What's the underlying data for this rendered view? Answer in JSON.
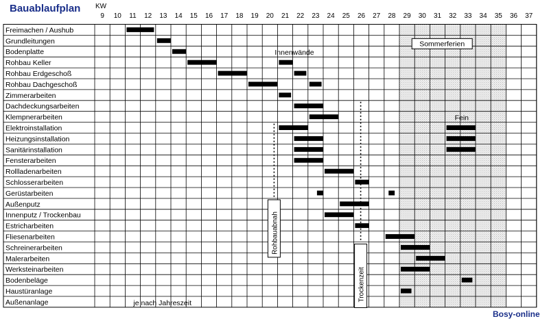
{
  "chart_data": {
    "type": "gantt",
    "title": "Bauablaufplan",
    "week_label": "KW",
    "weeks": [
      9,
      10,
      11,
      12,
      13,
      14,
      15,
      16,
      17,
      18,
      19,
      20,
      21,
      22,
      23,
      24,
      25,
      26,
      27,
      28,
      29,
      30,
      31,
      32,
      33,
      34,
      35,
      36,
      37
    ],
    "tasks": [
      {
        "name": "Freimachen / Aushub",
        "bars": [
          [
            11,
            12.8
          ]
        ]
      },
      {
        "name": "Grundleitungen",
        "bars": [
          [
            13,
            13.9
          ]
        ]
      },
      {
        "name": "Bodenplatte",
        "bars": [
          [
            14,
            14.9
          ]
        ]
      },
      {
        "name": "Rohbau Keller",
        "bars": [
          [
            15,
            16.9
          ],
          [
            21,
            21.9
          ]
        ]
      },
      {
        "name": "Rohbau Erdgeschoß",
        "bars": [
          [
            17,
            18.9
          ],
          [
            22,
            22.8
          ]
        ]
      },
      {
        "name": "Rohbau Dachgeschoß",
        "bars": [
          [
            19,
            20.9
          ],
          [
            23,
            23.8
          ]
        ]
      },
      {
        "name": "Zimmerarbeiten",
        "bars": [
          [
            21,
            21.8
          ]
        ]
      },
      {
        "name": "Dachdeckungsarbeiten",
        "bars": [
          [
            22,
            23.9
          ]
        ]
      },
      {
        "name": "Klempnerarbeiten",
        "bars": [
          [
            23,
            24.9
          ]
        ]
      },
      {
        "name": "Elektroinstallation",
        "bars": [
          [
            21,
            22.9
          ],
          [
            32,
            33.9
          ]
        ]
      },
      {
        "name": "Heizungsinstallation",
        "bars": [
          [
            22,
            23.9
          ],
          [
            32,
            33.9
          ]
        ]
      },
      {
        "name": "Sanitärinstallation",
        "bars": [
          [
            22,
            23.9
          ],
          [
            32,
            33.9
          ]
        ]
      },
      {
        "name": "Fensterarbeiten",
        "bars": [
          [
            22,
            23.9
          ]
        ]
      },
      {
        "name": "Rollladenarbeiten",
        "bars": [
          [
            24,
            25.9
          ]
        ]
      },
      {
        "name": "Schlosserarbeiten",
        "bars": [
          [
            26,
            26.9
          ]
        ]
      },
      {
        "name": "Gerüstarbeiten",
        "bars": [
          [
            23.5,
            23.9
          ],
          [
            28.2,
            28.6
          ]
        ]
      },
      {
        "name": "Außenputz",
        "bars": [
          [
            25,
            26.9
          ]
        ]
      },
      {
        "name": "Innenputz / Trockenbau",
        "bars": [
          [
            24,
            25.9
          ]
        ]
      },
      {
        "name": "Estricharbeiten",
        "bars": [
          [
            26,
            26.9
          ]
        ]
      },
      {
        "name": "Fliesenarbeiten",
        "bars": [
          [
            28,
            29.9
          ]
        ]
      },
      {
        "name": "Schreinerarbeiten",
        "bars": [
          [
            29,
            30.9
          ]
        ]
      },
      {
        "name": "Malerarbeiten",
        "bars": [
          [
            30,
            31.9
          ]
        ]
      },
      {
        "name": "Werksteinarbeiten",
        "bars": [
          [
            29,
            30.9
          ]
        ]
      },
      {
        "name": "Bodenbeläge",
        "bars": [
          [
            33,
            33.7
          ]
        ]
      },
      {
        "name": "Haustüranlage",
        "bars": [
          [
            29,
            29.7
          ]
        ]
      },
      {
        "name": "Außenanlage",
        "bars": []
      }
    ],
    "shaded_weeks": [
      29,
      35
    ],
    "annotations": {
      "innenwaende": "Innenwände",
      "sommerferien": "Sommerferien",
      "fein": "Fein",
      "jahreszeit": "je nach Jahreszeit",
      "rohbauabnahme": "Rohbauabnah",
      "trockenzeit": "Trockenzeit"
    },
    "milestones": {
      "rohbauabnahme_week": 21,
      "trockenzeit_week": 27
    }
  },
  "footer": {
    "brand": "Bosy-online"
  }
}
